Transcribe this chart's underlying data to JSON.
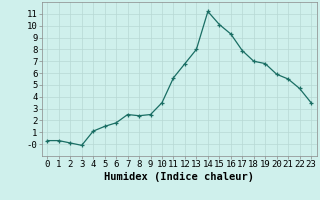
{
  "x": [
    0,
    1,
    2,
    3,
    4,
    5,
    6,
    7,
    8,
    9,
    10,
    11,
    12,
    13,
    14,
    15,
    16,
    17,
    18,
    19,
    20,
    21,
    22,
    23
  ],
  "y": [
    0.3,
    0.3,
    0.1,
    -0.1,
    1.1,
    1.5,
    1.8,
    2.5,
    2.4,
    2.5,
    3.5,
    5.6,
    6.8,
    8.0,
    11.2,
    10.1,
    9.3,
    7.9,
    7.0,
    6.8,
    5.9,
    5.5,
    4.7,
    3.5
  ],
  "line_color": "#1a6e64",
  "bg_color": "#cff0ec",
  "grid_color": "#b8d8d4",
  "xlabel": "Humidex (Indice chaleur)",
  "ylim": [
    -1,
    12
  ],
  "xlim": [
    -0.5,
    23.5
  ],
  "yticks": [
    0,
    1,
    2,
    3,
    4,
    5,
    6,
    7,
    8,
    9,
    10,
    11
  ],
  "ytick_labels": [
    "-0",
    "1",
    "2",
    "3",
    "4",
    "5",
    "6",
    "7",
    "8",
    "9",
    "10",
    "11"
  ],
  "xticks": [
    0,
    1,
    2,
    3,
    4,
    5,
    6,
    7,
    8,
    9,
    10,
    11,
    12,
    13,
    14,
    15,
    16,
    17,
    18,
    19,
    20,
    21,
    22,
    23
  ],
  "xtick_labels": [
    "0",
    "1",
    "2",
    "3",
    "4",
    "5",
    "6",
    "7",
    "8",
    "9",
    "10",
    "11",
    "12",
    "13",
    "14",
    "15",
    "16",
    "17",
    "18",
    "19",
    "20",
    "21",
    "22",
    "23"
  ],
  "marker": "+",
  "marker_size": 3.5,
  "line_width": 0.9,
  "tick_fontsize": 6.5,
  "xlabel_fontsize": 7.5,
  "spine_color": "#888888"
}
